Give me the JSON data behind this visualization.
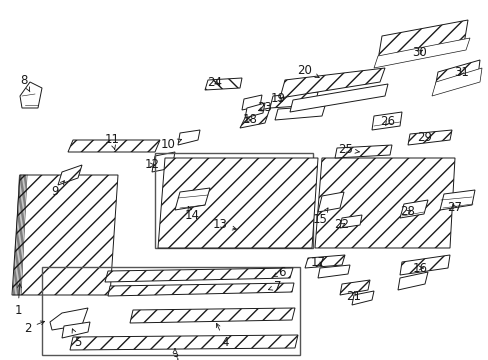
{
  "bg_color": "#ffffff",
  "line_color": "#1a1a1a",
  "fig_width": 4.89,
  "fig_height": 3.6,
  "dpi": 100,
  "label_fs": 8.5,
  "lw": 0.7
}
